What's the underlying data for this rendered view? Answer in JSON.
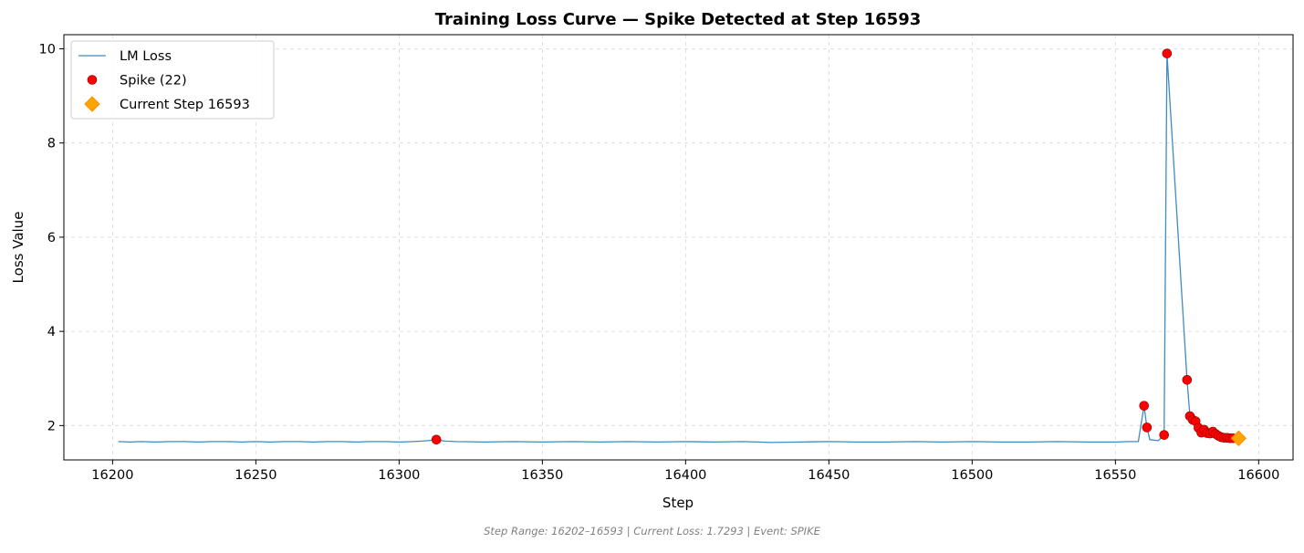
{
  "chart_data": {
    "type": "line",
    "title": "Training Loss Curve — Spike Detected at Step 16593",
    "xlabel": "Step",
    "ylabel": "Loss Value",
    "xlim": [
      16183,
      16612
    ],
    "ylim": [
      1.27,
      10.3
    ],
    "xticks": [
      16200,
      16250,
      16300,
      16350,
      16400,
      16450,
      16500,
      16550,
      16600
    ],
    "yticks": [
      2,
      4,
      6,
      8,
      10
    ],
    "grid": true,
    "legend_position": "upper-left",
    "series": [
      {
        "name": "LM Loss",
        "kind": "line",
        "color": "#1f77b4",
        "points": [
          [
            16202,
            1.66
          ],
          [
            16206,
            1.65
          ],
          [
            16210,
            1.66
          ],
          [
            16215,
            1.65
          ],
          [
            16220,
            1.66
          ],
          [
            16225,
            1.66
          ],
          [
            16230,
            1.65
          ],
          [
            16235,
            1.66
          ],
          [
            16240,
            1.66
          ],
          [
            16245,
            1.65
          ],
          [
            16250,
            1.66
          ],
          [
            16255,
            1.65
          ],
          [
            16260,
            1.66
          ],
          [
            16265,
            1.66
          ],
          [
            16270,
            1.65
          ],
          [
            16275,
            1.66
          ],
          [
            16280,
            1.66
          ],
          [
            16285,
            1.65
          ],
          [
            16290,
            1.66
          ],
          [
            16295,
            1.66
          ],
          [
            16300,
            1.65
          ],
          [
            16305,
            1.66
          ],
          [
            16308,
            1.67
          ],
          [
            16310,
            1.68
          ],
          [
            16313,
            1.7
          ],
          [
            16316,
            1.67
          ],
          [
            16320,
            1.66
          ],
          [
            16330,
            1.65
          ],
          [
            16340,
            1.66
          ],
          [
            16350,
            1.65
          ],
          [
            16360,
            1.66
          ],
          [
            16370,
            1.65
          ],
          [
            16380,
            1.66
          ],
          [
            16390,
            1.65
          ],
          [
            16400,
            1.66
          ],
          [
            16410,
            1.65
          ],
          [
            16420,
            1.66
          ],
          [
            16430,
            1.64
          ],
          [
            16440,
            1.65
          ],
          [
            16450,
            1.66
          ],
          [
            16460,
            1.65
          ],
          [
            16470,
            1.65
          ],
          [
            16480,
            1.66
          ],
          [
            16490,
            1.65
          ],
          [
            16500,
            1.66
          ],
          [
            16510,
            1.65
          ],
          [
            16520,
            1.65
          ],
          [
            16530,
            1.66
          ],
          [
            16540,
            1.65
          ],
          [
            16550,
            1.65
          ],
          [
            16555,
            1.66
          ],
          [
            16558,
            1.66
          ],
          [
            16560,
            2.42
          ],
          [
            16561,
            1.96
          ],
          [
            16562,
            1.7
          ],
          [
            16565,
            1.68
          ],
          [
            16567,
            1.8
          ],
          [
            16568,
            9.9
          ],
          [
            16575,
            2.97
          ],
          [
            16576,
            2.2
          ],
          [
            16577,
            2.12
          ],
          [
            16578,
            2.09
          ],
          [
            16579,
            1.95
          ],
          [
            16580,
            1.85
          ],
          [
            16581,
            1.91
          ],
          [
            16582,
            1.84
          ],
          [
            16583,
            1.83
          ],
          [
            16584,
            1.87
          ],
          [
            16585,
            1.82
          ],
          [
            16586,
            1.78
          ],
          [
            16587,
            1.75
          ],
          [
            16588,
            1.74
          ],
          [
            16589,
            1.74
          ],
          [
            16590,
            1.73
          ],
          [
            16591,
            1.73
          ],
          [
            16592,
            1.73
          ],
          [
            16593,
            1.7293
          ]
        ]
      },
      {
        "name": "Spike (22)",
        "kind": "scatter",
        "marker": "circle",
        "color": "#ff0000",
        "edge_color": "#8b0000",
        "points": [
          [
            16313,
            1.7
          ],
          [
            16560,
            2.42
          ],
          [
            16561,
            1.96
          ],
          [
            16567,
            1.8
          ],
          [
            16568,
            9.9
          ],
          [
            16575,
            2.97
          ],
          [
            16576,
            2.2
          ],
          [
            16577,
            2.12
          ],
          [
            16578,
            2.09
          ],
          [
            16579,
            1.95
          ],
          [
            16580,
            1.85
          ],
          [
            16581,
            1.91
          ],
          [
            16582,
            1.84
          ],
          [
            16583,
            1.83
          ],
          [
            16584,
            1.87
          ],
          [
            16585,
            1.82
          ],
          [
            16586,
            1.78
          ],
          [
            16587,
            1.75
          ],
          [
            16588,
            1.74
          ],
          [
            16589,
            1.74
          ],
          [
            16590,
            1.73
          ],
          [
            16591,
            1.73
          ]
        ]
      },
      {
        "name": "Current Step 16593",
        "kind": "scatter",
        "marker": "diamond",
        "color": "#ffa500",
        "edge_color": "#ff8c00",
        "points": [
          [
            16593,
            1.7293
          ]
        ]
      }
    ]
  },
  "footer": {
    "text": "Step Range: 16202–16593 | Current Loss: 1.7293 | Event: SPIKE"
  }
}
